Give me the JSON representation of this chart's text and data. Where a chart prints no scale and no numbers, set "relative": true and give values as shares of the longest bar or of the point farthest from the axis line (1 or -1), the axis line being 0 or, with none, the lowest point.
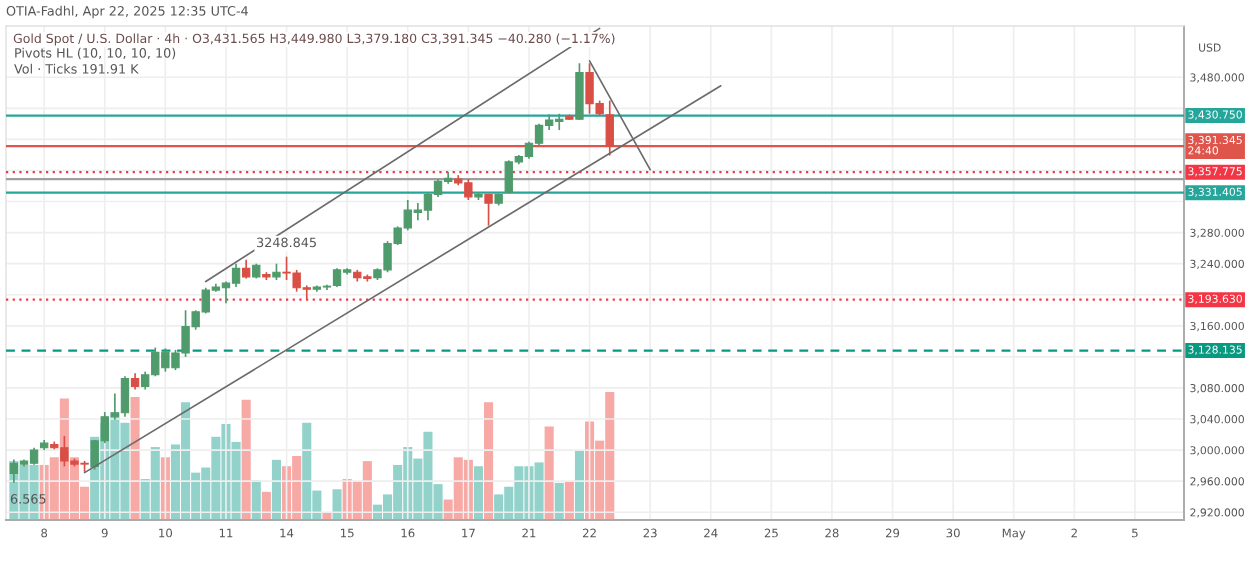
{
  "chart_data": [
    {
      "type": "candlestick",
      "title": "Gold Spot / U.S. Dollar · 4h · O3,431.565 H3,449.980 L3,379.180 C3,391.345 −40.280 (−1.17%)",
      "ylabel": "USD",
      "annotations": [
        "OTIA-Fadhl, Apr 22, 2025 12:35 UTC-4",
        "Pivots HL (10, 10, 10, 10)",
        "Vol · Ticks 191.91 K",
        "6.565",
        {
          "text": "3248.845",
          "y": 3249
        }
      ],
      "categories": [
        null,
        null,
        null,
        "8",
        null,
        null,
        null,
        null,
        null,
        "9",
        null,
        null,
        null,
        null,
        null,
        "10",
        null,
        null,
        null,
        null,
        null,
        "11",
        null,
        null,
        null,
        null,
        null,
        "14",
        null,
        null,
        null,
        null,
        null,
        "15",
        null,
        null,
        null,
        null,
        null,
        "16",
        null,
        null,
        null,
        null,
        null,
        "17",
        null,
        null,
        null,
        null,
        null,
        "21",
        null,
        null,
        null,
        null,
        null,
        "22",
        null,
        null,
        null,
        null,
        null,
        "23",
        null,
        null,
        null,
        null,
        null,
        "24",
        null,
        null,
        null,
        null,
        null,
        "25",
        null,
        null,
        null,
        null,
        null,
        "28",
        null,
        null,
        null,
        null,
        null,
        "29",
        null,
        null,
        null,
        null,
        null,
        "30",
        null,
        null,
        null,
        null,
        null,
        "May",
        null,
        null,
        null,
        null,
        null,
        "2",
        null,
        null,
        null,
        null,
        null,
        "5",
        null,
        null,
        null,
        null
      ],
      "ohlc": [
        [
          2970,
          2988,
          2958,
          2983
        ],
        [
          2982,
          2988,
          2979,
          2986
        ],
        [
          2983,
          3003,
          2981,
          3000
        ],
        [
          3003,
          3013,
          3000,
          3009
        ],
        [
          3007,
          3011,
          3001,
          3003
        ],
        [
          3003,
          3018,
          2979,
          2986
        ],
        [
          2986,
          2989,
          2979,
          2982
        ],
        [
          2983,
          2986,
          2972,
          2982
        ],
        [
          2979,
          3013,
          2975,
          3012
        ],
        [
          3012,
          3049,
          3009,
          3043
        ],
        [
          3043,
          3073,
          3039,
          3048
        ],
        [
          3048,
          3095,
          3043,
          3092
        ],
        [
          3092,
          3099,
          3078,
          3082
        ],
        [
          3082,
          3101,
          3078,
          3097
        ],
        [
          3097,
          3132,
          3095,
          3126
        ],
        [
          3106,
          3131,
          3101,
          3126
        ],
        [
          3106,
          3129,
          3103,
          3125
        ],
        [
          3125,
          3180,
          3120,
          3159
        ],
        [
          3159,
          3180,
          3155,
          3178
        ],
        [
          3178,
          3209,
          3176,
          3206
        ],
        [
          3206,
          3214,
          3204,
          3210
        ],
        [
          3209,
          3217,
          3189,
          3215
        ],
        [
          3215,
          3240,
          3210,
          3234
        ],
        [
          3234,
          3245,
          3221,
          3223
        ],
        [
          3223,
          3240,
          3221,
          3238
        ],
        [
          3226,
          3229,
          3219,
          3223
        ],
        [
          3223,
          3240,
          3219,
          3229
        ],
        [
          3229,
          3249,
          3219,
          3228
        ],
        [
          3228,
          3232,
          3204,
          3209
        ],
        [
          3209,
          3212,
          3194,
          3207
        ],
        [
          3207,
          3212,
          3204,
          3210
        ],
        [
          3210,
          3213,
          3206,
          3211
        ],
        [
          3212,
          3234,
          3210,
          3232
        ],
        [
          3229,
          3234,
          3226,
          3232
        ],
        [
          3229,
          3232,
          3217,
          3222
        ],
        [
          3223,
          3226,
          3217,
          3221
        ],
        [
          3222,
          3234,
          3219,
          3232
        ],
        [
          3232,
          3269,
          3229,
          3266
        ],
        [
          3266,
          3288,
          3264,
          3286
        ],
        [
          3286,
          3322,
          3283,
          3309
        ],
        [
          3306,
          3318,
          3296,
          3309
        ],
        [
          3309,
          3332,
          3296,
          3329
        ],
        [
          3329,
          3349,
          3326,
          3346
        ],
        [
          3346,
          3358,
          3343,
          3350
        ],
        [
          3349,
          3354,
          3341,
          3344
        ],
        [
          3344,
          3349,
          3322,
          3326
        ],
        [
          3326,
          3332,
          3322,
          3329
        ],
        [
          3329,
          3330,
          3289,
          3318
        ],
        [
          3318,
          3330,
          3315,
          3329
        ],
        [
          3332,
          3373,
          3330,
          3371
        ],
        [
          3371,
          3380,
          3368,
          3378
        ],
        [
          3378,
          3397,
          3375,
          3395
        ],
        [
          3395,
          3420,
          3392,
          3418
        ],
        [
          3418,
          3432,
          3412,
          3425
        ],
        [
          3423,
          3433,
          3412,
          3426
        ],
        [
          3429,
          3432,
          3425,
          3426
        ],
        [
          3426,
          3498,
          3425,
          3486
        ],
        [
          3486,
          3498,
          3433,
          3446
        ],
        [
          3446,
          3450,
          3431,
          3433
        ],
        [
          3431.565,
          3449.98,
          3379.18,
          3391.345
        ],
        null,
        null,
        null,
        null,
        null,
        null,
        null,
        null,
        null,
        null,
        null,
        null,
        null,
        null,
        null,
        null,
        null,
        null,
        null,
        null,
        null,
        null,
        null,
        null,
        null,
        null,
        null,
        null,
        null,
        null,
        null,
        null,
        null,
        null,
        null,
        null,
        null,
        null,
        null,
        null,
        null,
        null,
        null,
        null,
        null,
        null,
        null,
        null,
        null,
        null,
        null,
        null,
        null,
        null,
        null,
        null
      ],
      "colors": [
        "#4f9b6b",
        "#4f9b6b",
        "#4f9b6b",
        "#4f9b6b",
        "#d94f45",
        "#d94f45",
        "#d94f45",
        "#d94f45",
        "#4f9b6b",
        "#4f9b6b",
        "#4f9b6b",
        "#4f9b6b",
        "#d94f45",
        "#4f9b6b",
        "#4f9b6b",
        "#4f9b6b",
        "#4f9b6b",
        "#4f9b6b",
        "#4f9b6b",
        "#4f9b6b",
        "#4f9b6b",
        "#4f9b6b",
        "#4f9b6b",
        "#d94f45",
        "#4f9b6b",
        "#d94f45",
        "#4f9b6b",
        "#d94f45",
        "#d94f45",
        "#d94f45",
        "#4f9b6b",
        "#4f9b6b",
        "#4f9b6b",
        "#4f9b6b",
        "#d94f45",
        "#d94f45",
        "#4f9b6b",
        "#4f9b6b",
        "#4f9b6b",
        "#4f9b6b",
        "#4f9b6b",
        "#4f9b6b",
        "#4f9b6b",
        "#4f9b6b",
        "#d94f45",
        "#d94f45",
        "#4f9b6b",
        "#d94f45",
        "#4f9b6b",
        "#4f9b6b",
        "#4f9b6b",
        "#4f9b6b",
        "#4f9b6b",
        "#4f9b6b",
        "#4f9b6b",
        "#d94f45",
        "#4f9b6b",
        "#d94f45",
        "#d94f45",
        "#d94f45",
        null,
        null,
        null,
        null,
        null,
        null,
        null,
        null,
        null,
        null,
        null,
        null,
        null,
        null,
        null,
        null,
        null,
        null,
        null,
        null,
        null,
        null,
        null,
        null,
        null,
        null,
        null,
        null,
        null,
        null,
        null,
        null,
        null,
        null,
        null,
        null,
        null,
        null,
        null,
        null,
        null,
        null,
        null,
        null,
        null,
        null,
        null,
        null,
        null,
        null,
        null,
        null,
        null,
        null,
        null,
        null
      ],
      "series": [
        {
          "type": "line",
          "color": "#6b6b6b",
          "values": [
            null,
            null,
            null,
            null,
            null,
            null,
            null,
            null,
            null,
            null,
            null,
            null,
            null,
            null,
            null,
            null,
            null,
            null,
            null,
            3217,
            null,
            null,
            null,
            null,
            null,
            null,
            null,
            null,
            null,
            null,
            null,
            null,
            null,
            null,
            null,
            null,
            null,
            null,
            null,
            null,
            null,
            null,
            null,
            null,
            null,
            null,
            null,
            null,
            null,
            null,
            null,
            null,
            null,
            null,
            null,
            null,
            null,
            null,
            3543,
            null,
            null,
            null,
            null,
            null,
            null,
            null,
            null,
            null,
            null,
            null,
            null,
            null,
            null,
            null,
            null,
            null,
            null,
            null,
            null,
            null,
            null,
            null,
            null,
            null,
            null,
            null,
            null,
            null,
            null,
            null,
            null,
            null,
            null,
            null,
            null,
            null,
            null,
            null,
            null,
            null,
            null,
            null,
            null,
            null,
            null,
            null,
            null,
            null,
            null,
            null,
            null,
            null,
            null,
            null,
            null,
            null
          ]
        },
        {
          "type": "line",
          "color": "#6b6b6b",
          "values": [
            null,
            null,
            null,
            null,
            null,
            null,
            null,
            2971,
            null,
            null,
            null,
            null,
            null,
            null,
            null,
            null,
            null,
            null,
            null,
            null,
            null,
            null,
            null,
            null,
            null,
            null,
            null,
            null,
            null,
            null,
            null,
            null,
            null,
            null,
            null,
            null,
            null,
            null,
            null,
            null,
            null,
            null,
            null,
            null,
            null,
            null,
            null,
            null,
            null,
            null,
            null,
            null,
            null,
            null,
            null,
            null,
            null,
            null,
            null,
            null,
            null,
            null,
            null,
            null,
            null,
            null,
            null,
            null,
            null,
            null,
            3469,
            null,
            null,
            null,
            null,
            null,
            null,
            null,
            null,
            null,
            null,
            null,
            null,
            null,
            null,
            null,
            null,
            null,
            null,
            null,
            null,
            null,
            null,
            null,
            null,
            null,
            null,
            null,
            null,
            null,
            null,
            null,
            null,
            null,
            null,
            null,
            null,
            null,
            null,
            null,
            null,
            null,
            null,
            null,
            null,
            null
          ]
        },
        {
          "type": "line",
          "color": "#6b6b6b",
          "values": [
            null,
            null,
            null,
            null,
            null,
            null,
            null,
            null,
            null,
            null,
            null,
            null,
            null,
            null,
            null,
            null,
            null,
            null,
            null,
            null,
            null,
            null,
            null,
            null,
            null,
            null,
            null,
            null,
            null,
            null,
            null,
            null,
            null,
            null,
            null,
            null,
            null,
            null,
            null,
            null,
            null,
            null,
            null,
            null,
            null,
            null,
            null,
            null,
            null,
            null,
            null,
            null,
            null,
            null,
            null,
            null,
            null,
            3501,
            null,
            null,
            null,
            null,
            null,
            3361,
            null,
            null,
            null,
            null,
            null,
            null,
            null,
            null,
            null,
            null,
            null,
            null,
            null,
            null,
            null,
            null,
            null,
            null,
            null,
            null,
            null,
            null,
            null,
            null,
            null,
            null,
            null,
            null,
            null,
            null,
            null,
            null,
            null,
            null,
            null,
            null,
            null,
            null,
            null,
            null,
            null,
            null,
            null,
            null,
            null,
            null,
            null,
            null,
            null,
            null,
            null,
            null
          ]
        }
      ],
      "ref_lines": [
        {
          "axis": "y",
          "value": 3430.75,
          "label": "3,430.750",
          "color": "#26a69a",
          "line_style": "solid"
        },
        {
          "axis": "y",
          "value": 3391.345,
          "label": "3,391.345\n24:40",
          "color": "#e0554b",
          "line_style": "solid"
        },
        {
          "axis": "y",
          "value": 3357.775,
          "label": "3,357.775",
          "color": "#f23645",
          "line_style": "dotted"
        },
        {
          "axis": "y",
          "value": 3349,
          "label": null,
          "color": "#9e9e9e",
          "line_style": "solid"
        },
        {
          "axis": "y",
          "value": 3331.405,
          "label": "3,331.405",
          "color": "#26a69a",
          "line_style": "solid"
        },
        {
          "axis": "y",
          "value": 3193.63,
          "label": "3,193.630",
          "color": "#f23645",
          "line_style": "dotted"
        },
        {
          "axis": "y",
          "value": 3128.135,
          "label": "3,128.135",
          "color": "#089981",
          "line_style": "dashed"
        }
      ],
      "ylim": [
        2910,
        3546
      ],
      "yticks": [
        {
          "value": 2920,
          "label": "2,920.000"
        },
        {
          "value": 2960,
          "label": "2,960.000"
        },
        {
          "value": 3000,
          "label": "3,000.000"
        },
        {
          "value": 3040,
          "label": "3,040.000"
        },
        {
          "value": 3080,
          "label": "3,080.000"
        },
        {
          "value": 3120,
          "label": null
        },
        {
          "value": 3160,
          "label": "3,160.000"
        },
        {
          "value": 3200,
          "label": null
        },
        {
          "value": 3240,
          "label": "3,240.000"
        },
        {
          "value": 3280,
          "label": "3,280.000"
        },
        {
          "value": 3320,
          "label": null
        },
        {
          "value": 3360,
          "label": null
        },
        {
          "value": 3400,
          "label": null
        },
        {
          "value": 3440,
          "label": null
        },
        {
          "value": 3480,
          "label": "3,480.000"
        }
      ],
      "grid": true
    },
    {
      "type": "bar",
      "relative": true,
      "categories": [
        null,
        null,
        null,
        null,
        null,
        null,
        null,
        null,
        null,
        null,
        null,
        null,
        null,
        null,
        null,
        null,
        null,
        null,
        null,
        null,
        null,
        null,
        null,
        null,
        null,
        null,
        null,
        null,
        null,
        null,
        null,
        null,
        null,
        null,
        null,
        null,
        null,
        null,
        null,
        null,
        null,
        null,
        null,
        null,
        null,
        null,
        null,
        null,
        null,
        null,
        null,
        null,
        null,
        null,
        null,
        null,
        null,
        null,
        null,
        null,
        null,
        null,
        null,
        null,
        null,
        null,
        null,
        null,
        null,
        null,
        null,
        null,
        null,
        null,
        null,
        null,
        null,
        null,
        null,
        null,
        null,
        null,
        null,
        null,
        null,
        null,
        null,
        null,
        null,
        null,
        null,
        null,
        null,
        null,
        null,
        null,
        null,
        null,
        null,
        null,
        null,
        null,
        null,
        null,
        null,
        null,
        null,
        null,
        null,
        null,
        null,
        null,
        null,
        null,
        null,
        null
      ],
      "values": [
        0.46,
        0.43,
        0.43,
        0.43,
        0.49,
        0.95,
        0.49,
        0.26,
        0.65,
        0.76,
        0.84,
        0.76,
        0.96,
        0.32,
        0.57,
        0.49,
        0.59,
        0.92,
        0.37,
        0.41,
        0.65,
        0.75,
        0.61,
        0.94,
        0.31,
        0.22,
        0.47,
        0.42,
        0.5,
        0.76,
        0.23,
        0.06,
        0.24,
        0.32,
        0.3,
        0.46,
        0.12,
        0.2,
        0.43,
        0.57,
        0.48,
        0.69,
        0.28,
        0.16,
        0.49,
        0.47,
        0.42,
        0.92,
        0.2,
        0.26,
        0.42,
        0.42,
        0.45,
        0.73,
        0.29,
        0.3,
        0.54,
        0.77,
        0.62,
        1,
        null,
        null,
        null,
        null,
        null,
        null,
        null,
        null,
        null,
        null,
        null,
        null,
        null,
        null,
        null,
        null,
        null,
        null,
        null,
        null,
        null,
        null,
        null,
        null,
        null,
        null,
        null,
        null,
        null,
        null,
        null,
        null,
        null,
        null,
        null,
        null,
        null,
        null,
        null,
        null,
        null,
        null,
        null,
        null,
        null,
        null,
        null,
        null,
        null,
        null,
        null,
        null,
        null,
        null,
        null,
        null
      ],
      "colors": [
        "#92d2cb",
        "#92d2cb",
        "#92d2cb",
        "#f7a9a6",
        "#f7a9a6",
        "#f7a9a6",
        "#f7a9a6",
        "#f7a9a6",
        "#92d2cb",
        "#92d2cb",
        "#92d2cb",
        "#92d2cb",
        "#f7a9a6",
        "#92d2cb",
        "#92d2cb",
        "#f7a9a6",
        "#92d2cb",
        "#92d2cb",
        "#92d2cb",
        "#92d2cb",
        "#92d2cb",
        "#92d2cb",
        "#92d2cb",
        "#f7a9a6",
        "#92d2cb",
        "#f7a9a6",
        "#92d2cb",
        "#f7a9a6",
        "#f7a9a6",
        "#92d2cb",
        "#92d2cb",
        "#f7a9a6",
        "#92d2cb",
        "#f7a9a6",
        "#f7a9a6",
        "#f7a9a6",
        "#92d2cb",
        "#92d2cb",
        "#92d2cb",
        "#92d2cb",
        "#92d2cb",
        "#92d2cb",
        "#92d2cb",
        "#f7a9a6",
        "#f7a9a6",
        "#f7a9a6",
        "#92d2cb",
        "#f7a9a6",
        "#92d2cb",
        "#92d2cb",
        "#92d2cb",
        "#92d2cb",
        "#92d2cb",
        "#f7a9a6",
        "#92d2cb",
        "#f7a9a6",
        "#92d2cb",
        "#f7a9a6",
        "#f7a9a6",
        "#f7a9a6",
        null,
        null,
        null,
        null,
        null,
        null,
        null,
        null,
        null,
        null,
        null,
        null,
        null,
        null,
        null,
        null,
        null,
        null,
        null,
        null,
        null,
        null,
        null,
        null,
        null,
        null,
        null,
        null,
        null,
        null,
        null,
        null,
        null,
        null,
        null,
        null,
        null,
        null,
        null,
        null,
        null,
        null,
        null,
        null,
        null,
        null,
        null,
        null,
        null,
        null,
        null,
        null,
        null,
        null,
        null,
        null
      ]
    }
  ]
}
